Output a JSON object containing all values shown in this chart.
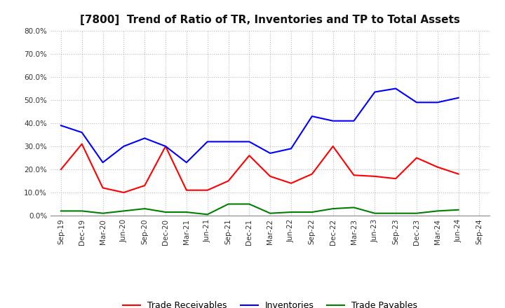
{
  "title": "[7800]  Trend of Ratio of TR, Inventories and TP to Total Assets",
  "x_labels": [
    "Sep-19",
    "Dec-19",
    "Mar-20",
    "Jun-20",
    "Sep-20",
    "Dec-20",
    "Mar-21",
    "Jun-21",
    "Sep-21",
    "Dec-21",
    "Mar-22",
    "Jun-22",
    "Sep-22",
    "Dec-22",
    "Mar-23",
    "Jun-23",
    "Sep-23",
    "Dec-23",
    "Mar-24",
    "Jun-24",
    "Sep-24"
  ],
  "trade_receivables": [
    0.2,
    0.31,
    0.12,
    0.1,
    0.13,
    0.3,
    0.11,
    0.11,
    0.15,
    0.26,
    0.17,
    0.14,
    0.18,
    0.3,
    0.175,
    0.17,
    0.16,
    0.25,
    0.21,
    0.18,
    null
  ],
  "inventories": [
    0.39,
    0.36,
    0.23,
    0.3,
    0.335,
    0.3,
    0.23,
    0.32,
    0.32,
    0.32,
    0.27,
    0.29,
    0.43,
    0.41,
    0.41,
    0.535,
    0.55,
    0.49,
    0.49,
    0.51,
    null
  ],
  "trade_payables": [
    0.02,
    0.02,
    0.01,
    0.02,
    0.03,
    0.015,
    0.015,
    0.005,
    0.05,
    0.05,
    0.01,
    0.015,
    0.015,
    0.03,
    0.035,
    0.01,
    0.01,
    0.01,
    0.02,
    0.025,
    null
  ],
  "tr_color": "#ff0000",
  "inv_color": "#0000ff",
  "tp_color": "#008000",
  "ylim": [
    0.0,
    0.8
  ],
  "yticks": [
    0.0,
    0.1,
    0.2,
    0.3,
    0.4,
    0.5,
    0.6,
    0.7,
    0.8
  ],
  "legend_labels": [
    "Trade Receivables",
    "Inventories",
    "Trade Payables"
  ],
  "bg_color": "#ffffff",
  "grid_color": "#bbbbbb"
}
